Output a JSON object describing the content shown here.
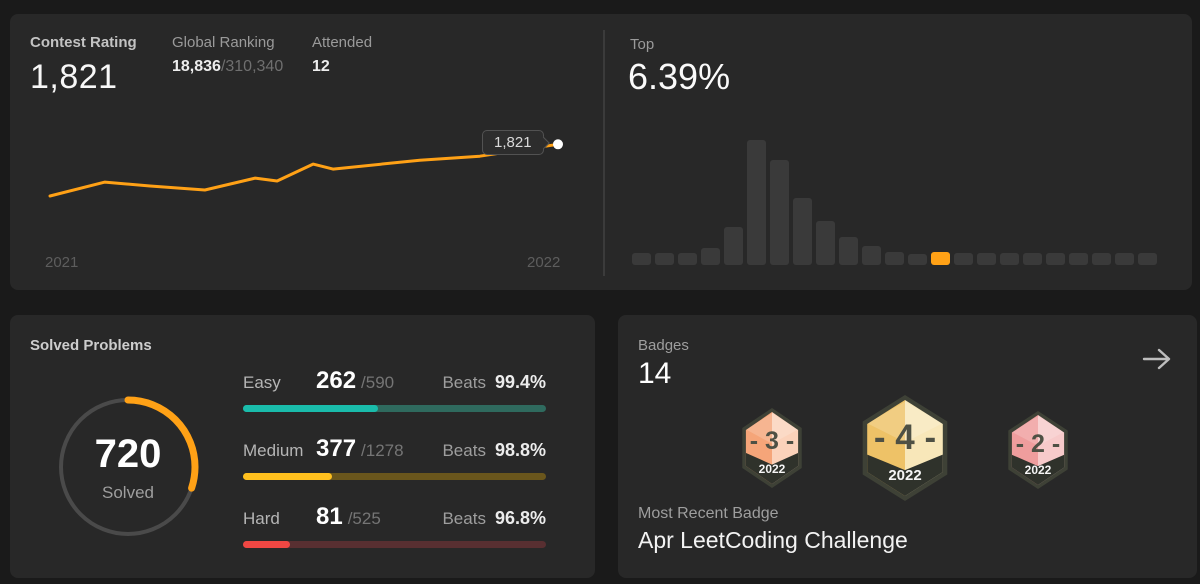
{
  "page": {
    "bg": "#1a1a1a",
    "card_bg": "#282828",
    "accent": "#ffa116"
  },
  "contest": {
    "rating_label": "Contest Rating",
    "rating_value": "1,821",
    "ranking_label": "Global Ranking",
    "ranking_value": "18,836",
    "ranking_total": "/310,340",
    "attended_label": "Attended",
    "attended_value": "12",
    "tooltip_value": "1,821",
    "axis_start": "2021",
    "axis_end": "2022"
  },
  "top_stat": {
    "label": "Top",
    "value": "6.39%"
  },
  "chart_data": [
    {
      "type": "line",
      "title": "contest-rating-history",
      "x_range": [
        "2021",
        "2022"
      ],
      "ylim": [
        1450,
        1860
      ],
      "line_color": "#ffa116",
      "end_marker": "white-dot",
      "tooltip": "1,821",
      "points": [
        {
          "x": 0.0,
          "rating": 1500
        },
        {
          "x": 0.108,
          "rating": 1586
        },
        {
          "x": 0.197,
          "rating": 1562
        },
        {
          "x": 0.305,
          "rating": 1537
        },
        {
          "x": 0.404,
          "rating": 1611
        },
        {
          "x": 0.447,
          "rating": 1593
        },
        {
          "x": 0.518,
          "rating": 1698
        },
        {
          "x": 0.557,
          "rating": 1667
        },
        {
          "x": 0.728,
          "rating": 1722
        },
        {
          "x": 0.846,
          "rating": 1747
        },
        {
          "x": 1.0,
          "rating": 1821
        }
      ]
    },
    {
      "type": "bar",
      "title": "rating-distribution-histogram",
      "values": [
        12,
        12,
        12,
        17,
        38,
        125,
        105,
        67,
        44,
        28,
        19,
        13,
        11,
        13,
        12,
        12,
        12,
        12,
        12,
        12,
        12,
        12,
        12
      ],
      "highlight_index": 13,
      "bar_color": "#3a3a3a",
      "highlight_color": "#ffa116",
      "ymax": 127
    }
  ],
  "solved": {
    "title": "Solved Problems",
    "total_value": "720",
    "total_label": "Solved",
    "progress_pct": 30.1,
    "ring_color": "#ffa116",
    "ring_track": "#4a4a4a",
    "rows": [
      {
        "label": "Easy",
        "solved": "262",
        "total": "/590",
        "beats_label": "Beats",
        "beats_value": "99.4%",
        "pct": 44.4,
        "fill": "#1abcab",
        "track": "#2f6a5e"
      },
      {
        "label": "Medium",
        "solved": "377",
        "total": "/1278",
        "beats_label": "Beats",
        "beats_value": "98.8%",
        "pct": 29.5,
        "fill": "#ffc01e",
        "track": "#6a561c"
      },
      {
        "label": "Hard",
        "solved": "81",
        "total": "/525",
        "beats_label": "Beats",
        "beats_value": "96.8%",
        "pct": 15.4,
        "fill": "#ef4743",
        "track": "#582f31"
      }
    ]
  },
  "badges": {
    "label": "Badges",
    "count": "14",
    "arrow_icon": "arrow-right",
    "items": [
      {
        "number": "3",
        "year": "2022",
        "size": "small",
        "left_color": "#f5a579",
        "right_color": "#fbd2ba"
      },
      {
        "number": "4",
        "year": "2022",
        "size": "large",
        "left_color": "#eec267",
        "right_color": "#f8e7b9"
      },
      {
        "number": "2",
        "year": "2022",
        "size": "small",
        "left_color": "#ef9d9d",
        "right_color": "#f7caca"
      }
    ],
    "recent_label": "Most Recent Badge",
    "recent_value": "Apr LeetCoding Challenge"
  }
}
